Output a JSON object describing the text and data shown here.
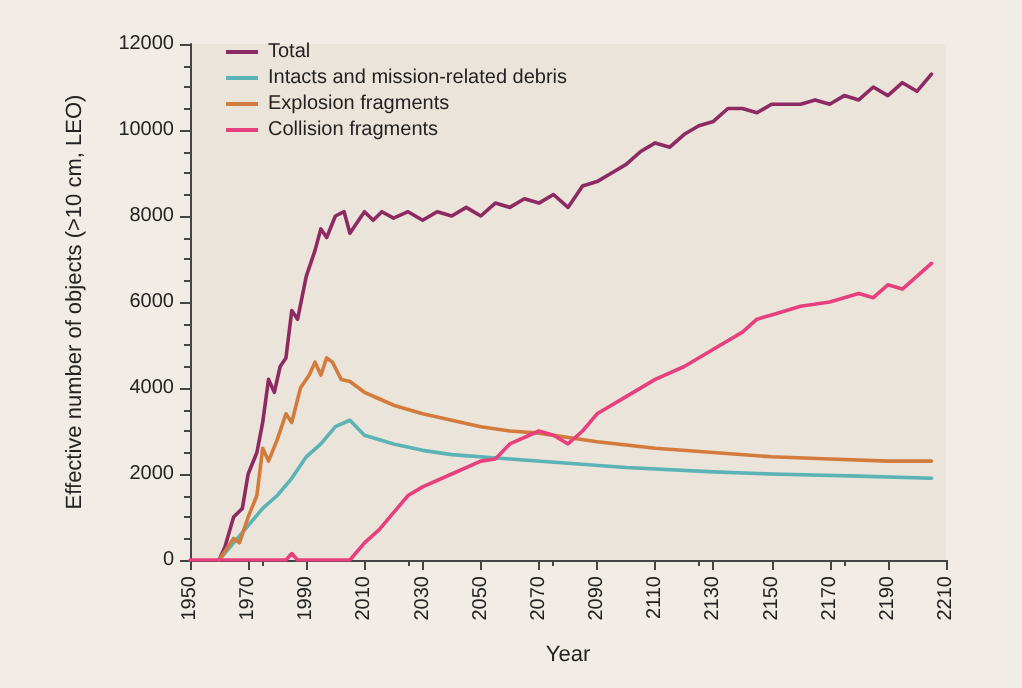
{
  "chart_data": {
    "type": "line",
    "xlabel": "Year",
    "ylabel": "Effective number of objects (>10 cm, LEO)",
    "xlim": [
      1950,
      2210
    ],
    "xticks": [
      1950,
      1970,
      1990,
      2010,
      2030,
      2050,
      2070,
      2090,
      2110,
      2130,
      2150,
      2170,
      2190,
      2210
    ],
    "ylim": [
      0,
      12000
    ],
    "yticks": [
      0,
      2000,
      4000,
      6000,
      8000,
      10000,
      12000
    ],
    "grid": false,
    "legend": "top left",
    "marker": "none",
    "line_style": "solid",
    "series": [
      {
        "name": "Total",
        "color": "#8e2a62",
        "x": [
          1960,
          1962,
          1965,
          1968,
          1970,
          1973,
          1975,
          1977,
          1979,
          1981,
          1983,
          1985,
          1987,
          1990,
          1993,
          1995,
          1997,
          2000,
          2003,
          2005,
          2008,
          2010,
          2013,
          2016,
          2020,
          2025,
          2030,
          2035,
          2040,
          2045,
          2050,
          2055,
          2060,
          2065,
          2070,
          2075,
          2080,
          2085,
          2090,
          2095,
          2100,
          2105,
          2110,
          2115,
          2120,
          2125,
          2130,
          2135,
          2140,
          2145,
          2150,
          2160,
          2165,
          2170,
          2175,
          2180,
          2185,
          2190,
          2195,
          2200,
          2205
        ],
        "values": [
          0,
          300,
          1000,
          1200,
          2000,
          2500,
          3200,
          4200,
          3900,
          4500,
          4700,
          5800,
          5600,
          6600,
          7200,
          7700,
          7500,
          8000,
          8100,
          7600,
          7900,
          8100,
          7900,
          8100,
          7950,
          8100,
          7900,
          8100,
          8000,
          8200,
          8000,
          8300,
          8200,
          8400,
          8300,
          8500,
          8200,
          8700,
          8800,
          9000,
          9200,
          9500,
          9700,
          9600,
          9900,
          10100,
          10200,
          10500,
          10500,
          10400,
          10600,
          10600,
          10700,
          10600,
          10800,
          10700,
          11000,
          10800,
          11100,
          10900,
          11300
        ]
      },
      {
        "name": "Intacts and mission-related debris",
        "color": "#5bb3b5",
        "x": [
          1960,
          1965,
          1970,
          1975,
          1980,
          1985,
          1990,
          1995,
          2000,
          2005,
          2010,
          2020,
          2030,
          2040,
          2060,
          2080,
          2100,
          2130,
          2150,
          2180,
          2205
        ],
        "values": [
          0,
          400,
          800,
          1200,
          1500,
          1900,
          2400,
          2700,
          3100,
          3250,
          2900,
          2700,
          2550,
          2450,
          2350,
          2250,
          2150,
          2050,
          2000,
          1950,
          1900
        ]
      },
      {
        "name": "Explosion fragments",
        "color": "#d27b3c",
        "x": [
          1960,
          1963,
          1965,
          1967,
          1970,
          1973,
          1975,
          1977,
          1980,
          1983,
          1985,
          1988,
          1991,
          1993,
          1995,
          1997,
          1999,
          2002,
          2005,
          2010,
          2015,
          2020,
          2030,
          2040,
          2050,
          2060,
          2070,
          2090,
          2110,
          2130,
          2150,
          2170,
          2190,
          2205
        ],
        "values": [
          0,
          300,
          500,
          400,
          1000,
          1500,
          2600,
          2300,
          2800,
          3400,
          3200,
          4000,
          4300,
          4600,
          4300,
          4700,
          4600,
          4200,
          4150,
          3900,
          3750,
          3600,
          3400,
          3250,
          3100,
          3000,
          2950,
          2750,
          2600,
          2500,
          2400,
          2350,
          2300,
          2300
        ]
      },
      {
        "name": "Collision fragments",
        "color": "#e6407e",
        "x": [
          1950,
          1983,
          1985,
          1987,
          2003,
          2005,
          2010,
          2015,
          2020,
          2025,
          2030,
          2040,
          2050,
          2055,
          2060,
          2070,
          2075,
          2080,
          2085,
          2090,
          2100,
          2110,
          2120,
          2130,
          2140,
          2145,
          2150,
          2160,
          2170,
          2180,
          2185,
          2190,
          2195,
          2205
        ],
        "values": [
          0,
          0,
          150,
          0,
          0,
          0,
          400,
          700,
          1100,
          1500,
          1700,
          2000,
          2300,
          2350,
          2700,
          3000,
          2900,
          2700,
          3000,
          3400,
          3800,
          4200,
          4500,
          4900,
          5300,
          5600,
          5700,
          5900,
          6000,
          6200,
          6100,
          6400,
          6300,
          6900
        ]
      }
    ]
  }
}
